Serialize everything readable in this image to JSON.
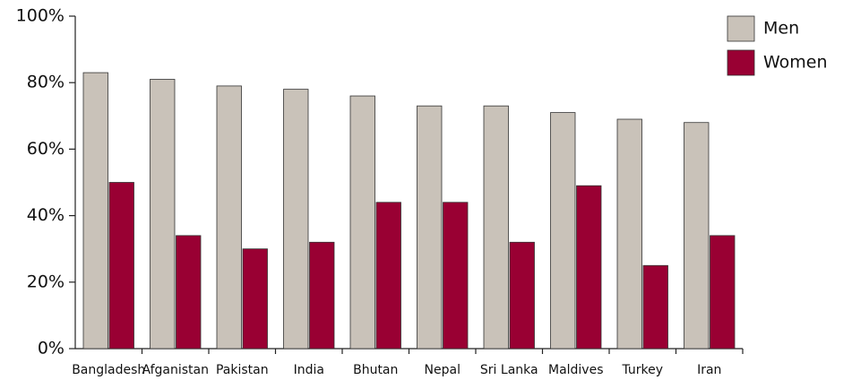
{
  "chart_data": {
    "type": "bar",
    "categories": [
      "Bangladesh",
      "Afganistan",
      "Pakistan",
      "India",
      "Bhutan",
      "Nepal",
      "Sri Lanka",
      "Maldives",
      "Turkey",
      "Iran"
    ],
    "series": [
      {
        "name": "Men",
        "color": "#c9c2b9",
        "values": [
          83,
          81,
          79,
          78,
          76,
          73,
          73,
          71,
          69,
          68
        ]
      },
      {
        "name": "Women",
        "color": "#990033",
        "values": [
          50,
          34,
          30,
          32,
          44,
          44,
          32,
          49,
          25,
          34
        ]
      }
    ],
    "ylim": [
      0,
      100
    ],
    "yticks": [
      {
        "value": 0,
        "label": "0%"
      },
      {
        "value": 20,
        "label": "20%"
      },
      {
        "value": 40,
        "label": "40%"
      },
      {
        "value": 60,
        "label": "60%"
      },
      {
        "value": 80,
        "label": "80%"
      },
      {
        "value": 100,
        "label": "100%"
      }
    ],
    "legend": "top-right"
  }
}
